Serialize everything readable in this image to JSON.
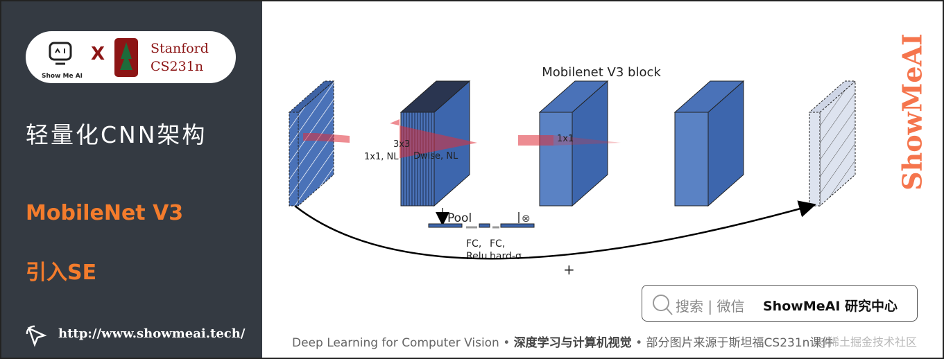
{
  "sidebar": {
    "logo_showmeai": "Show Me AI",
    "logo_x": "X",
    "logo_stanford": "Stanford",
    "logo_course": "CS231n",
    "title": "轻量化CNN架构",
    "subtitle": "MobileNet V3",
    "topic": "引入SE",
    "url": "http://www.showmeai.tech/",
    "accent": "#f47c2c"
  },
  "diagram": {
    "title": "Mobilenet V3 block",
    "label_conv1": "1x1, NL",
    "label_kernel": "3x3",
    "label_dwise": "Dwise, NL",
    "label_pool": "Pool",
    "label_fc1_a": "FC,",
    "label_fc1_b": "Relu",
    "label_fc2_a": "FC,",
    "label_fc2_b": "hard-σ",
    "label_mult": "⊗",
    "label_proj": "1x1",
    "label_plus": "+",
    "block_color": "#4a72b8"
  },
  "search": {
    "prefix": "搜索 | 微信",
    "brand": "ShowMeAI 研究中心",
    "icon": "search-icon"
  },
  "footer": {
    "en": "Deep Learning for Computer Vision",
    "sep": "•",
    "cn": "深度学习与计算机视觉",
    "note": "部分图片来源于斯坦福CS231n课件"
  },
  "watermark": {
    "side": "ShowMeAI",
    "juejin": "@稀土掘金技术社区"
  }
}
